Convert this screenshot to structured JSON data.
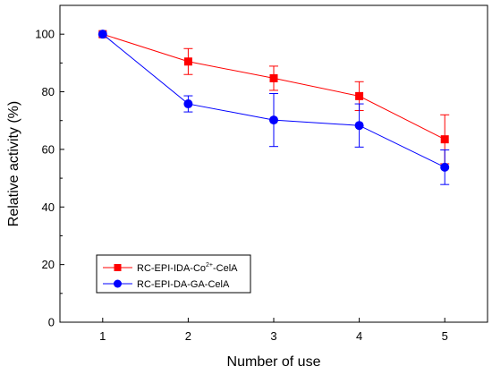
{
  "chart_data": {
    "type": "line",
    "xlabel": "Number of use",
    "ylabel": "Relative activity (%)",
    "xlim": [
      0.5,
      5.5
    ],
    "ylim": [
      0,
      110
    ],
    "x": [
      1,
      2,
      3,
      4,
      5
    ],
    "x_ticks": [
      "1",
      "2",
      "3",
      "4",
      "5"
    ],
    "y_ticks": [
      "0",
      "20",
      "40",
      "60",
      "80",
      "100"
    ],
    "grid": false,
    "legend_position": "bottom-left",
    "series": [
      {
        "name": "RC-EPI-IDA-Co2+-CelA",
        "name_main": "RC-EPI-IDA-Co",
        "name_sup": "2+",
        "name_tail": "-CelA",
        "color": "#ff0000",
        "marker": "square",
        "values": [
          100,
          90.5,
          84.7,
          78.5,
          63.5
        ],
        "errors": [
          0,
          4.5,
          4.2,
          5.0,
          8.5
        ]
      },
      {
        "name": "RC-EPI-DA-GA-CelA",
        "color": "#0000ff",
        "marker": "circle",
        "values": [
          100,
          75.8,
          70.2,
          68.3,
          53.8
        ],
        "errors": [
          0,
          2.8,
          9.2,
          7.5,
          6.0
        ]
      }
    ]
  }
}
